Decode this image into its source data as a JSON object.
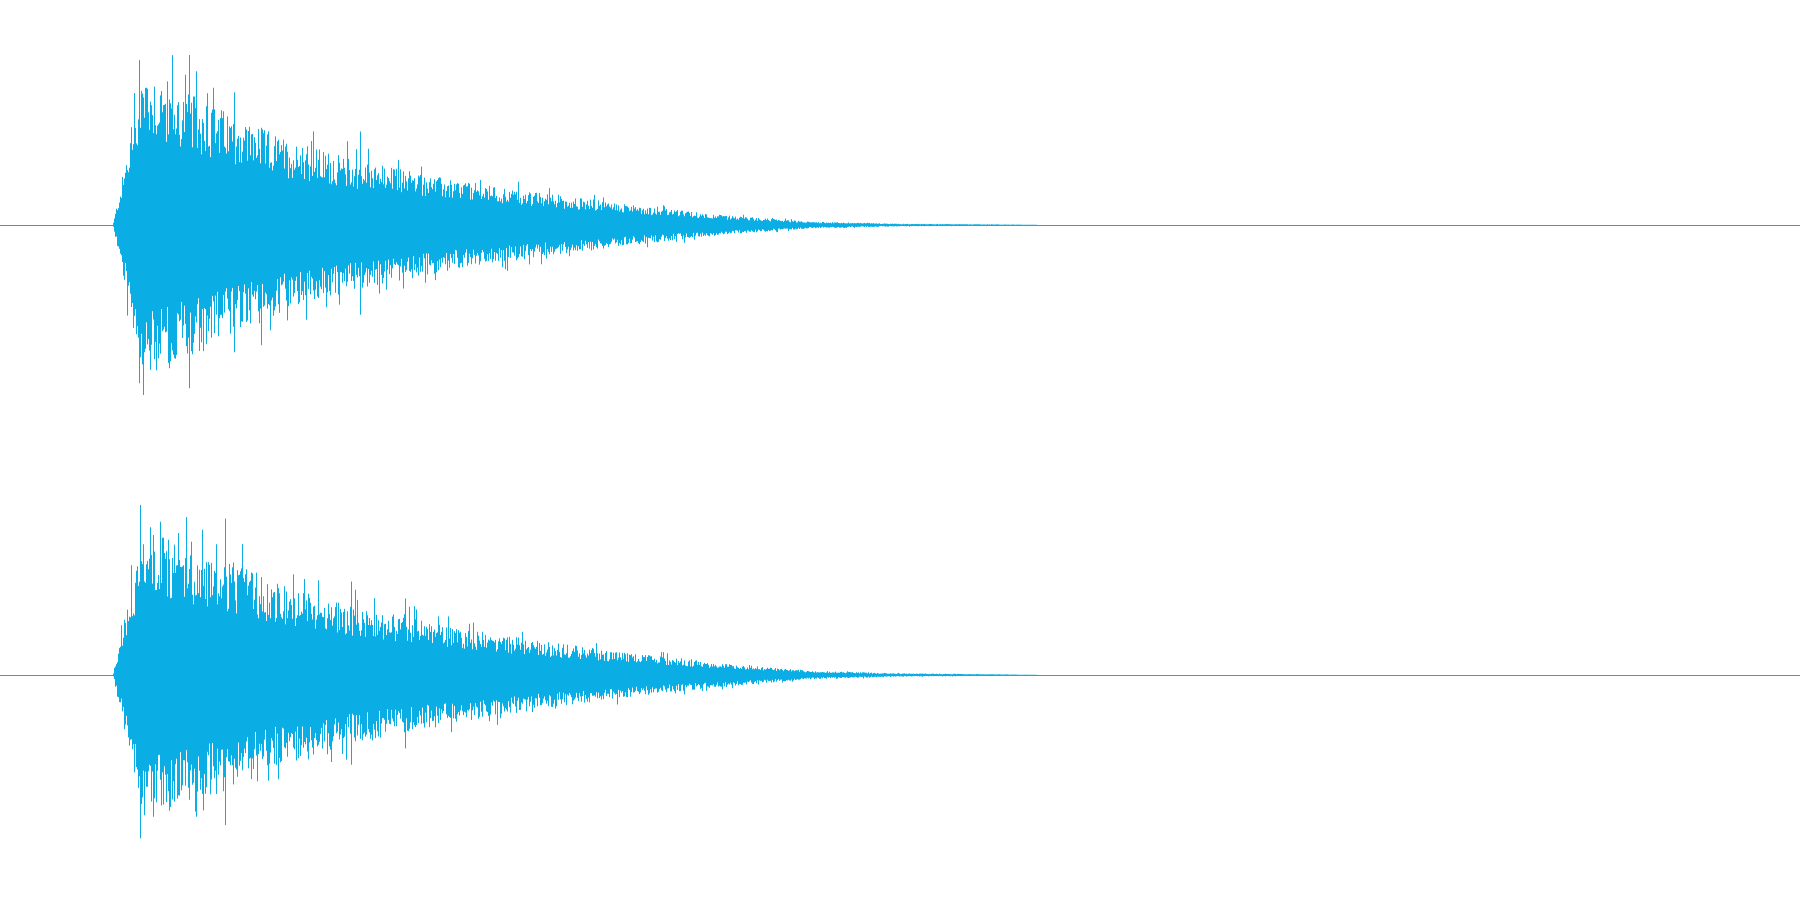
{
  "colors": {
    "background": "#ffffff",
    "waveform": "#0aaee4",
    "baseline": "#0aaee4"
  },
  "chart_data": {
    "type": "area",
    "title": "",
    "xlabel": "",
    "ylabel": "",
    "grid": false,
    "legend": "none",
    "x_range": [
      0,
      1
    ],
    "y_range": [
      -1,
      1
    ],
    "description_of_axes": "",
    "channels": [
      {
        "channel": 1,
        "x": [
          0.0625,
          0.08,
          0.1,
          0.13,
          0.16,
          0.2,
          0.25,
          0.3,
          0.35,
          0.4,
          0.45,
          0.5,
          0.55,
          0.57,
          0.59,
          1.0
        ],
        "peak": [
          0.0,
          0.95,
          0.8,
          0.65,
          0.5,
          0.38,
          0.27,
          0.19,
          0.12,
          0.06,
          0.02,
          0.008,
          0.004,
          0.002,
          0.0,
          0.0
        ],
        "spikes": [
          {
            "x": 0.077,
            "amplitude": 0.97
          },
          {
            "x": 0.105,
            "amplitude": 1.0
          },
          {
            "x": 0.13,
            "amplitude": 0.78
          },
          {
            "x": 0.2,
            "amplitude": 0.55
          }
        ]
      },
      {
        "channel": 2,
        "x": [
          0.0625,
          0.08,
          0.1,
          0.13,
          0.16,
          0.2,
          0.25,
          0.3,
          0.35,
          0.4,
          0.45,
          0.5,
          0.55,
          0.57,
          0.59,
          1.0
        ],
        "peak": [
          0.0,
          0.9,
          0.78,
          0.66,
          0.52,
          0.4,
          0.29,
          0.2,
          0.13,
          0.07,
          0.025,
          0.01,
          0.005,
          0.002,
          0.0,
          0.0
        ],
        "spikes": [
          {
            "x": 0.078,
            "amplitude": 1.0
          },
          {
            "x": 0.125,
            "amplitude": 0.92
          },
          {
            "x": 0.195,
            "amplitude": 0.55
          },
          {
            "x": 0.225,
            "amplitude": 0.45
          }
        ]
      }
    ]
  }
}
